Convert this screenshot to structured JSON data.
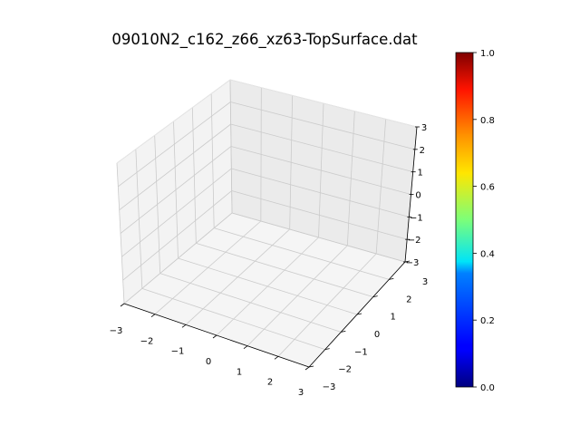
{
  "chart_data": {
    "type": "surface3d",
    "title": "09010N2_c162_z66_xz63-TopSurface.dat",
    "xlabel": "",
    "ylabel": "",
    "zlabel": "",
    "xlim": [
      -3,
      3
    ],
    "ylim": [
      -3,
      3
    ],
    "zlim": [
      -3,
      3
    ],
    "x_ticks": [
      "−3",
      "−2",
      "−1",
      "0",
      "1",
      "2",
      "3"
    ],
    "y_ticks": [
      "−3",
      "−2",
      "−1",
      "0",
      "1",
      "2",
      "3"
    ],
    "z_ticks": [
      "−3",
      "−2",
      "−1",
      "0",
      "1",
      "2",
      "3"
    ],
    "grid": true,
    "series": [],
    "colorbar": {
      "colormap": "jet",
      "range": [
        0,
        1
      ],
      "ticks": [
        "0.0",
        "0.2",
        "0.4",
        "0.6",
        "0.8",
        "1.0"
      ]
    }
  }
}
